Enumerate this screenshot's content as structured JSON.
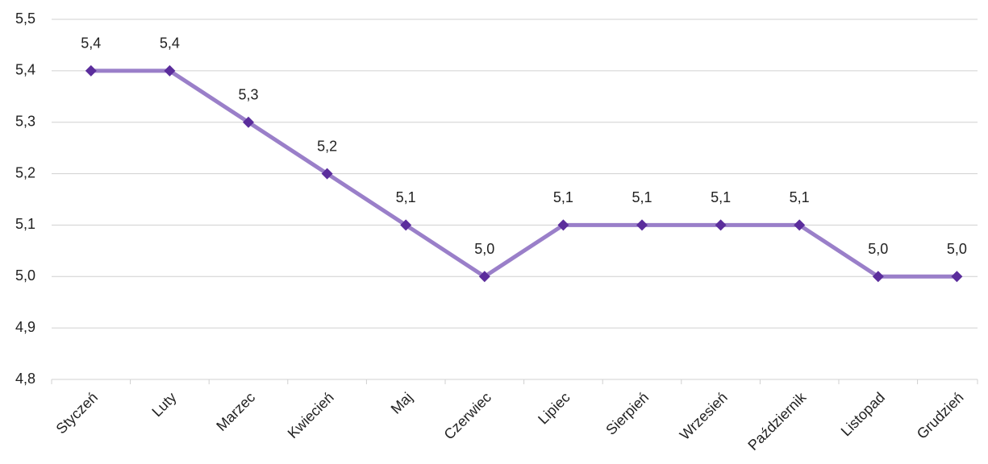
{
  "chart_data": {
    "type": "line",
    "categories": [
      "Styczeń",
      "Luty",
      "Marzec",
      "Kwiecień",
      "Maj",
      "Czerwiec",
      "Lipiec",
      "Sierpień",
      "Wrzesień",
      "Październik",
      "Listopad",
      "Grudzień"
    ],
    "values": [
      5.4,
      5.4,
      5.3,
      5.2,
      5.1,
      5.0,
      5.1,
      5.1,
      5.1,
      5.1,
      5.0,
      5.0
    ],
    "value_labels": [
      "5,4",
      "5,4",
      "5,3",
      "5,2",
      "5,1",
      "5,0",
      "5,1",
      "5,1",
      "5,1",
      "5,1",
      "5,0",
      "5,0"
    ],
    "color": "#9a7fc9",
    "marker_color": "#5b2d9c",
    "ylim": [
      4.8,
      5.5
    ],
    "yticks": [
      {
        "value": 4.8,
        "label": "4,8"
      },
      {
        "value": 4.9,
        "label": "4,9"
      },
      {
        "value": 5.0,
        "label": "5,0"
      },
      {
        "value": 5.1,
        "label": "5,1"
      },
      {
        "value": 5.2,
        "label": "5,2"
      },
      {
        "value": 5.3,
        "label": "5,3"
      },
      {
        "value": 5.4,
        "label": "5,4"
      },
      {
        "value": 5.5,
        "label": "5,5"
      }
    ],
    "grid": true
  }
}
